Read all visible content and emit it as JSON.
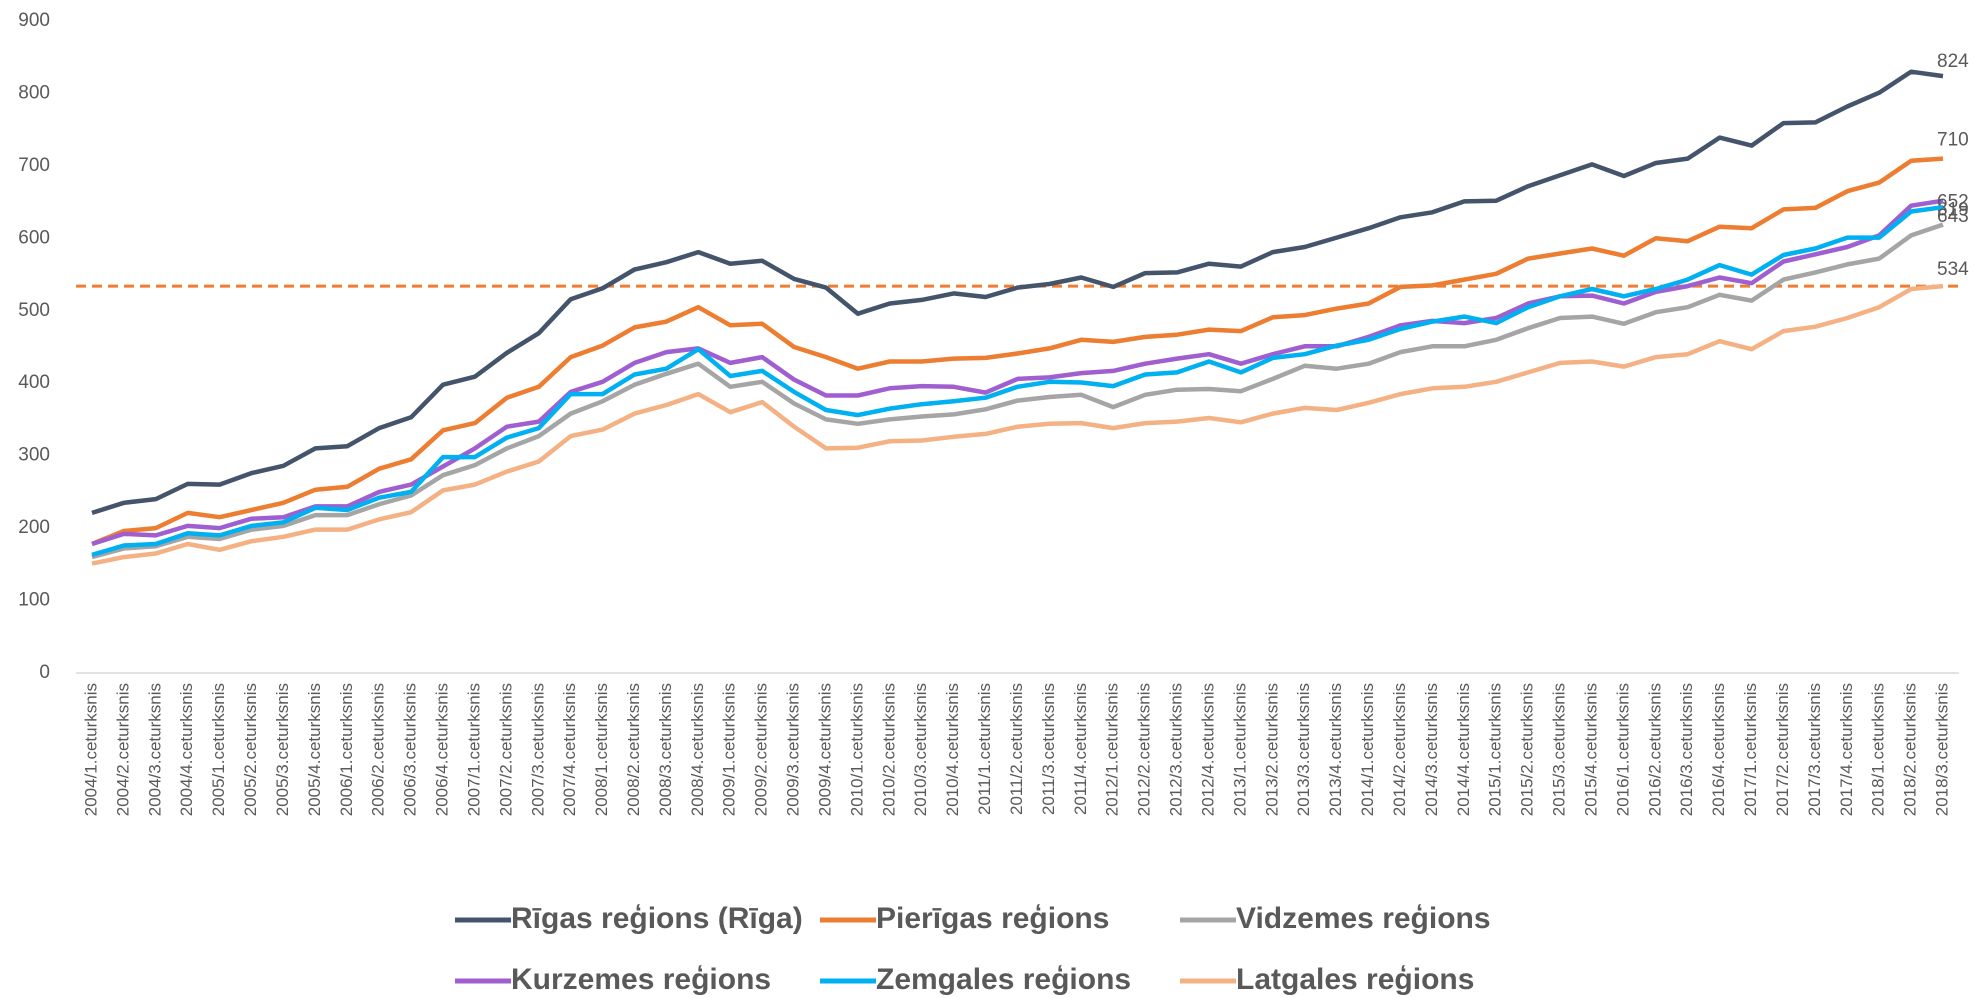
{
  "chart_data": {
    "type": "line",
    "categories": [
      "2004/1.ceturksnis",
      "2004/2.ceturksnis",
      "2004/3.ceturksnis",
      "2004/4.ceturksnis",
      "2005/1.ceturksnis",
      "2005/2.ceturksnis",
      "2005/3.ceturksnis",
      "2005/4.ceturksnis",
      "2006/1.ceturksnis",
      "2006/2.ceturksnis",
      "2006/3.ceturksnis",
      "2006/4.ceturksnis",
      "2007/1.ceturksnis",
      "2007/2.ceturksnis",
      "2007/3.ceturksnis",
      "2007/4.ceturksnis",
      "2008/1.ceturksnis",
      "2008/2.ceturksnis",
      "2008/3.ceturksnis",
      "2008/4.ceturksnis",
      "2009/1.ceturksnis",
      "2009/2.ceturksnis",
      "2009/3.ceturksnis",
      "2009/4.ceturksnis",
      "2010/1.ceturksnis",
      "2010/2.ceturksnis",
      "2010/3.ceturksnis",
      "2010/4.ceturksnis",
      "2011/1.ceturksnis",
      "2011/2.ceturksnis",
      "2011/3.ceturksnis",
      "2011/4.ceturksnis",
      "2012/1.ceturksnis",
      "2012/2.ceturksnis",
      "2012/3.ceturksnis",
      "2012/4.ceturksnis",
      "2013/1.ceturksnis",
      "2013/2.ceturksnis",
      "2013/3.ceturksnis",
      "2013/4.ceturksnis",
      "2014/1.ceturksnis",
      "2014/2.ceturksnis",
      "2014/3.ceturksnis",
      "2014/4.ceturksnis",
      "2015/1.ceturksnis",
      "2015/2.ceturksnis",
      "2015/3.ceturksnis",
      "2015/4.ceturksnis",
      "2016/1.ceturksnis",
      "2016/2.ceturksnis",
      "2016/3.ceturksnis",
      "2016/4.ceturksnis",
      "2017/1.ceturksnis",
      "2017/2.ceturksnis",
      "2017/3.ceturksnis",
      "2017/4.ceturksnis",
      "2018/1.ceturksnis",
      "2018/2.ceturksnis",
      "2018/3.ceturksnis"
    ],
    "series": [
      {
        "name": "Rīgas reģions (Rīga)",
        "color": "#44546a",
        "values": [
          221,
          235,
          240,
          261,
          260,
          276,
          286,
          310,
          313,
          338,
          353,
          398,
          409,
          442,
          469,
          516,
          531,
          557,
          567,
          581,
          565,
          569,
          544,
          532,
          496,
          510,
          515,
          524,
          519,
          532,
          537,
          546,
          533,
          552,
          553,
          565,
          561,
          581,
          588,
          601,
          614,
          629,
          636,
          651,
          652,
          672,
          687,
          702,
          686,
          704,
          710,
          739,
          728,
          759,
          760,
          782,
          801,
          830,
          824
        ]
      },
      {
        "name": "Pierīgas reģions",
        "color": "#ed7d31",
        "values": [
          178,
          196,
          200,
          221,
          215,
          225,
          235,
          253,
          257,
          282,
          295,
          335,
          345,
          380,
          395,
          436,
          452,
          477,
          485,
          505,
          480,
          482,
          450,
          436,
          420,
          430,
          430,
          434,
          435,
          441,
          448,
          460,
          457,
          464,
          467,
          474,
          472,
          491,
          494,
          503,
          510,
          533,
          535,
          543,
          551,
          572,
          579,
          586,
          576,
          600,
          596,
          616,
          614,
          640,
          642,
          665,
          677,
          707,
          710
        ]
      },
      {
        "name": "Vidzemes reģions",
        "color": "#a5a5a5",
        "values": [
          160,
          172,
          175,
          188,
          185,
          198,
          203,
          218,
          218,
          233,
          245,
          273,
          287,
          310,
          327,
          358,
          375,
          398,
          413,
          427,
          395,
          402,
          372,
          350,
          344,
          350,
          354,
          357,
          364,
          376,
          381,
          384,
          367,
          384,
          391,
          392,
          389,
          406,
          424,
          420,
          427,
          443,
          451,
          451,
          460,
          476,
          490,
          492,
          482,
          498,
          505,
          522,
          514,
          543,
          553,
          564,
          572,
          604,
          619
        ]
      },
      {
        "name": "Kurzemes reģions",
        "color": "#a05fd0",
        "values": [
          178,
          192,
          190,
          203,
          200,
          213,
          215,
          230,
          230,
          250,
          260,
          285,
          310,
          340,
          347,
          388,
          402,
          428,
          443,
          448,
          428,
          436,
          405,
          383,
          383,
          393,
          396,
          395,
          387,
          406,
          408,
          414,
          417,
          427,
          434,
          440,
          427,
          440,
          451,
          451,
          464,
          480,
          486,
          483,
          490,
          510,
          520,
          521,
          510,
          526,
          534,
          546,
          538,
          568,
          578,
          588,
          604,
          645,
          652
        ]
      },
      {
        "name": "Zemgales reģions",
        "color": "#00b0f0",
        "values": [
          163,
          176,
          178,
          193,
          190,
          203,
          208,
          228,
          225,
          242,
          250,
          298,
          298,
          325,
          338,
          385,
          385,
          412,
          420,
          447,
          410,
          417,
          388,
          363,
          356,
          365,
          371,
          375,
          380,
          395,
          402,
          401,
          396,
          412,
          415,
          430,
          415,
          435,
          440,
          452,
          460,
          475,
          485,
          492,
          483,
          505,
          520,
          530,
          520,
          530,
          543,
          563,
          550,
          577,
          586,
          601,
          601,
          637,
          643
        ]
      },
      {
        "name": "Latgales reģions",
        "color": "#f4b183",
        "values": [
          151,
          160,
          165,
          178,
          170,
          182,
          188,
          198,
          198,
          212,
          222,
          252,
          260,
          278,
          292,
          327,
          336,
          358,
          370,
          385,
          360,
          374,
          340,
          310,
          311,
          320,
          321,
          326,
          330,
          340,
          344,
          345,
          338,
          345,
          347,
          352,
          346,
          358,
          366,
          363,
          373,
          385,
          393,
          395,
          402,
          415,
          428,
          430,
          423,
          436,
          440,
          458,
          447,
          472,
          478,
          490,
          505,
          530,
          534
        ]
      }
    ],
    "reference_line": {
      "value": 534,
      "color": "#ed7d31",
      "dashed": true
    },
    "ylim": [
      0,
      900
    ],
    "yticks": [
      0,
      100,
      200,
      300,
      400,
      500,
      600,
      700,
      800,
      900
    ],
    "grid": false,
    "legend": "bottom"
  }
}
